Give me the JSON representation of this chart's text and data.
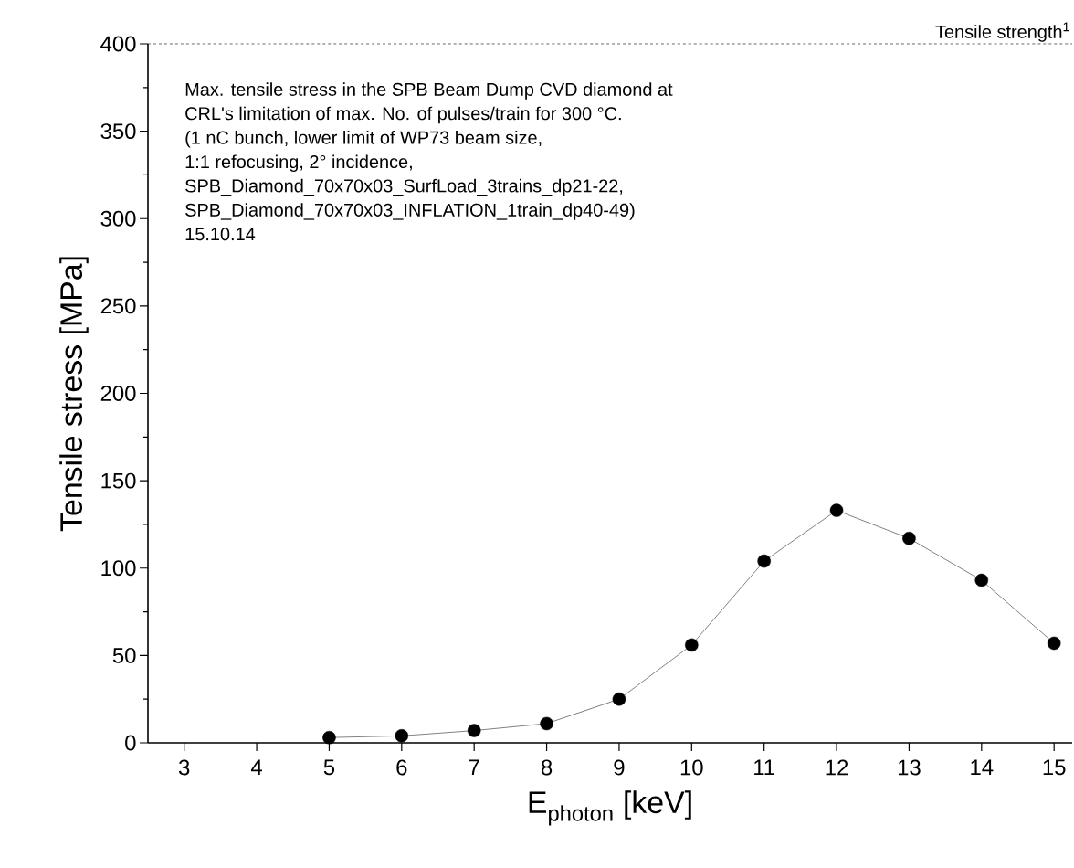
{
  "chart_data": {
    "type": "line",
    "xlabel": "E$_{photon}$ [keV]",
    "ylabel": "Tensile stress [MPa]",
    "annotations": [
      "Max. tensile stress in the SPB Beam Dump CVD diamond at",
      "CRL's limitation of max. No. of pulses/train for 300 °C.",
      "(1 nC bunch, lower limit of WP73 beam size,",
      "1:1 refocusing, 2° incidence,",
      "SPB_Diamond_70x70x03_SurfLoad_3trains_dp21-22,",
      "SPB_Diamond_70x70x03_INFLATION_1train_dp40-49)",
      "15.10.14"
    ],
    "x": [
      5,
      6,
      7,
      8,
      9,
      10,
      11,
      12,
      13,
      14,
      15
    ],
    "series": [
      {
        "color": "#000000",
        "values": [
          3,
          4,
          7,
          11,
          25,
          56,
          104,
          133,
          117,
          93,
          57
        ]
      }
    ],
    "marker": "circle",
    "line_style": "solid",
    "xlim": [
      2.5,
      15.25
    ],
    "ylim": [
      0,
      400
    ],
    "xticks": [
      3,
      4,
      5,
      6,
      7,
      8,
      9,
      10,
      11,
      12,
      13,
      14,
      15
    ],
    "yticks": [
      0,
      50,
      100,
      150,
      200,
      250,
      300,
      350,
      400
    ],
    "ref_lines": [
      {
        "axis": "y",
        "value": 400,
        "label": "Tensile strength$^{1}$",
        "color": "#000000",
        "line_style": "dashed"
      }
    ]
  }
}
